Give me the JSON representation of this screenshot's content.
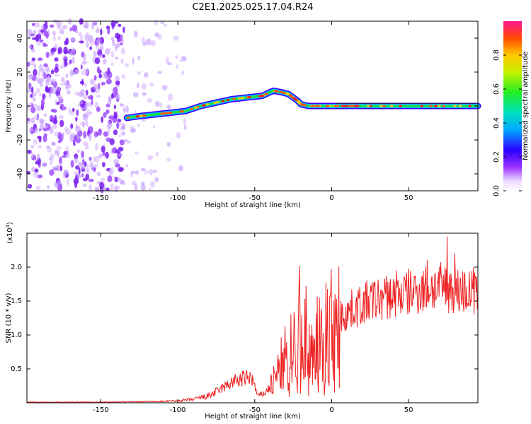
{
  "title": "C2E1.2025.025.17.04.R24",
  "chart_data": [
    {
      "type": "heatmap",
      "name": "spectrogram",
      "xlabel": "Height of straight line (km)",
      "ylabel": "Frequency (Hz)",
      "xlim": [
        -198,
        95
      ],
      "ylim": [
        -50,
        50
      ],
      "xticks": [
        -150,
        -100,
        -50,
        0,
        50
      ],
      "yticks": [
        -40,
        -20,
        0,
        20,
        40
      ],
      "colorbar": {
        "label": "Normalized spectral amplitude",
        "range": [
          0,
          1
        ],
        "ticks": [
          0.0,
          0.2,
          0.4,
          0.6,
          0.8
        ],
        "tick_labels": [
          "0.0",
          "0.2",
          "0.4",
          "0.6",
          "0.8"
        ]
      },
      "ridge": {
        "x": [
          -133,
          -125,
          -115,
          -105,
          -95,
          -85,
          -75,
          -65,
          -55,
          -45,
          -38,
          -32,
          -28,
          -25,
          -22,
          -20,
          -15,
          -10,
          -5,
          0,
          5,
          10,
          15,
          30,
          50,
          70,
          95
        ],
        "y": [
          -7,
          -6,
          -5,
          -4,
          -3,
          0,
          2,
          4,
          5,
          6,
          9,
          8,
          7,
          5,
          3,
          1,
          0,
          0,
          0,
          0,
          0,
          0,
          0,
          0,
          0,
          0,
          0
        ]
      }
    },
    {
      "type": "line",
      "name": "snr",
      "xlabel": "Height of straight line (km)",
      "ylabel": "SNR (10 * v/v)",
      "scale_label": "(x10",
      "scale_exp": "4",
      "scale_close": ")",
      "xlim": [
        -198,
        95
      ],
      "ylim": [
        0,
        2.5
      ],
      "xticks": [
        -150,
        -100,
        -50,
        0,
        50
      ],
      "yticks": [
        0.5,
        1.0,
        1.5,
        2.0
      ],
      "ytick_labels": [
        "0.5",
        "1.0",
        "1.5",
        "2.0"
      ],
      "color": "#ee2222",
      "envelope": {
        "x": [
          -198,
          -150,
          -110,
          -100,
          -90,
          -80,
          -72,
          -65,
          -58,
          -52,
          -48,
          -43,
          -38,
          -34,
          -30,
          -26,
          -22,
          -18,
          -14,
          -10,
          -6,
          -2,
          2,
          8,
          15,
          25,
          35,
          45,
          55,
          65,
          75,
          85,
          95
        ],
        "y": [
          0.01,
          0.01,
          0.02,
          0.03,
          0.05,
          0.1,
          0.2,
          0.3,
          0.35,
          0.38,
          0.1,
          0.15,
          0.3,
          0.5,
          0.7,
          0.85,
          1.0,
          1.05,
          0.9,
          0.9,
          1.05,
          1.15,
          1.2,
          1.3,
          1.4,
          1.5,
          1.55,
          1.6,
          1.65,
          1.7,
          1.7,
          1.65,
          1.6
        ]
      },
      "peaks": [
        [
          -21,
          2.02
        ],
        [
          -13,
          1.15
        ],
        [
          -11,
          0.95
        ],
        [
          75,
          2.45
        ],
        [
          80,
          2.2
        ],
        [
          92,
          2.0
        ],
        [
          62,
          2.1
        ],
        [
          42,
          1.95
        ]
      ]
    }
  ]
}
